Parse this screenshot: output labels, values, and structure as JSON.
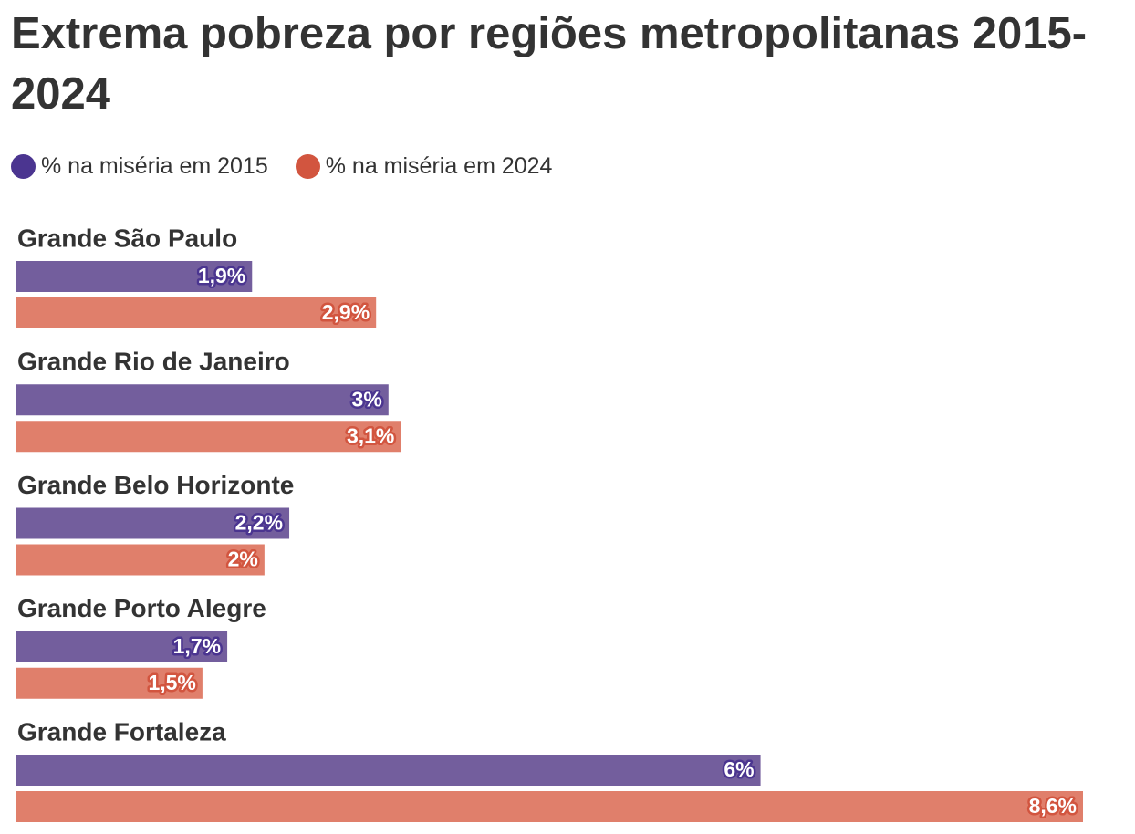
{
  "chart_data": {
    "type": "bar",
    "title": "Extrema pobreza por regiões metropolitanas 2015-2024",
    "categories": [
      "Grande São Paulo",
      "Grande Rio de Janeiro",
      "Grande Belo Horizonte",
      "Grande Porto Alegre",
      "Grande Fortaleza"
    ],
    "series": [
      {
        "name": "% na miséria em 2015",
        "color": "#735e9d",
        "values": [
          1.9,
          3,
          2.2,
          1.7,
          6
        ],
        "value_labels": [
          "1,9%",
          "3%",
          "2,2%",
          "1,7%",
          "6%"
        ]
      },
      {
        "name": "% na miséria em 2024",
        "color": "#e07f6b",
        "values": [
          2.9,
          3.1,
          2,
          1.5,
          8.6
        ],
        "value_labels": [
          "2,9%",
          "3,1%",
          "2%",
          "1,5%",
          "8,6%"
        ]
      }
    ]
  }
}
